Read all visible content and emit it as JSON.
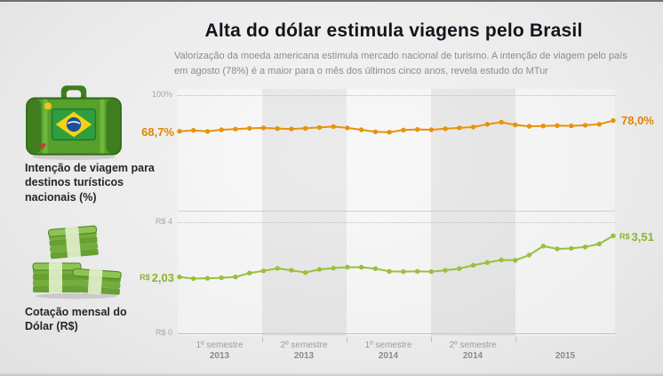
{
  "header": {
    "title": "Alta do dólar estimula viagens pelo Brasil",
    "subtitle": "Valorização da moeda americana estimula mercado nacional de turismo. A intenção de viagem pelo país em agosto (78%) é a maior para o mês dos últimos cinco anos, revela estudo do MTur"
  },
  "left_panel": {
    "travel_label": "Intenção de viagem para destinos turísticos nacionais (%)",
    "dollar_label": "Cotação mensal do Dólar (R$)",
    "icons": {
      "travel": "suitcase-brazil-flag-icon",
      "dollar": "money-stacks-icon"
    }
  },
  "axes": {
    "pct_top": "100%",
    "brl_top": "R$ 4",
    "brl_bottom": "R$ 0"
  },
  "annotations": {
    "travel_start": "68,7%",
    "travel_end": "78,0%",
    "dollar_start_prefix": "R$",
    "dollar_start": "2,03",
    "dollar_end_prefix": "R$",
    "dollar_end": "3,51"
  },
  "x_axis": [
    {
      "line1": "1º semestre",
      "line2": "2013"
    },
    {
      "line1": "2º semestre",
      "line2": "2013"
    },
    {
      "line1": "1º semestre",
      "line2": "2014"
    },
    {
      "line1": "2º semestre",
      "line2": "2014"
    },
    {
      "line1": "",
      "line2": "2015"
    }
  ],
  "chart_data": [
    {
      "type": "line",
      "name": "Intenção de viagem para destinos turísticos nacionais (%)",
      "color": "#e8920c",
      "ylim": [
        0,
        100
      ],
      "y_axis_labels_visible": [
        "100%"
      ],
      "x_categories": [
        "1º semestre 2013",
        "2º semestre 2013",
        "1º semestre 2014",
        "2º semestre 2014",
        "2015"
      ],
      "x_months": [
        "2013-01",
        "2013-02",
        "2013-03",
        "2013-04",
        "2013-05",
        "2013-06",
        "2013-07",
        "2013-08",
        "2013-09",
        "2013-10",
        "2013-11",
        "2013-12",
        "2014-01",
        "2014-02",
        "2014-03",
        "2014-04",
        "2014-05",
        "2014-06",
        "2014-07",
        "2014-08",
        "2014-09",
        "2014-10",
        "2014-11",
        "2014-12",
        "2015-01",
        "2015-02",
        "2015-03",
        "2015-04",
        "2015-05",
        "2015-06",
        "2015-07",
        "2015-08"
      ],
      "values": [
        68.7,
        69.5,
        68.6,
        70.0,
        70.6,
        71.2,
        71.6,
        71.1,
        70.7,
        71.3,
        72.0,
        72.8,
        71.6,
        70.0,
        68.2,
        67.9,
        69.8,
        70.3,
        70.0,
        70.9,
        71.6,
        72.4,
        74.8,
        76.5,
        74.2,
        73.0,
        73.3,
        73.6,
        73.4,
        73.9,
        74.8,
        78.0
      ],
      "first_point_label": "68,7%",
      "last_point_label": "78,0%"
    },
    {
      "type": "line",
      "name": "Cotação mensal do Dólar (R$)",
      "color": "#9bbf3b",
      "ylim": [
        0,
        4
      ],
      "y_axis_labels_visible": [
        "R$ 4",
        "R$ 0"
      ],
      "x_categories": [
        "1º semestre 2013",
        "2º semestre 2013",
        "1º semestre 2014",
        "2º semestre 2014",
        "2015"
      ],
      "x_months": [
        "2013-01",
        "2013-02",
        "2013-03",
        "2013-04",
        "2013-05",
        "2013-06",
        "2013-07",
        "2013-08",
        "2013-09",
        "2013-10",
        "2013-11",
        "2013-12",
        "2014-01",
        "2014-02",
        "2014-03",
        "2014-04",
        "2014-05",
        "2014-06",
        "2014-07",
        "2014-08",
        "2014-09",
        "2014-10",
        "2014-11",
        "2014-12",
        "2015-01",
        "2015-02",
        "2015-03",
        "2015-04",
        "2015-05",
        "2015-06",
        "2015-07",
        "2015-08"
      ],
      "values": [
        2.03,
        1.97,
        1.98,
        2.0,
        2.03,
        2.17,
        2.25,
        2.34,
        2.27,
        2.19,
        2.3,
        2.35,
        2.38,
        2.38,
        2.33,
        2.23,
        2.22,
        2.23,
        2.22,
        2.27,
        2.33,
        2.45,
        2.55,
        2.64,
        2.63,
        2.82,
        3.14,
        3.04,
        3.06,
        3.11,
        3.22,
        3.51
      ],
      "first_point_label": "R$ 2,03",
      "last_point_label": "R$ 3,51"
    }
  ]
}
